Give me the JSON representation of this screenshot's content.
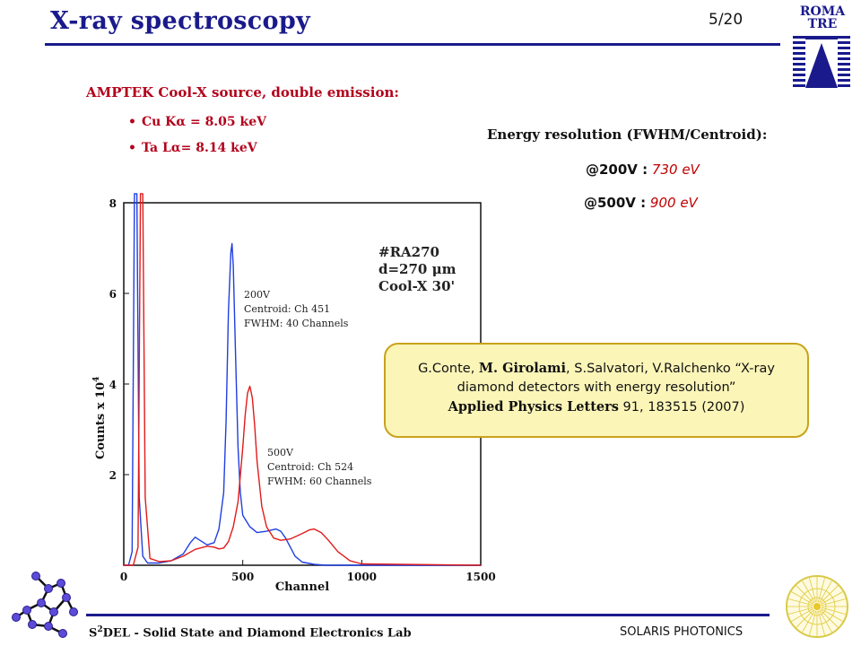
{
  "slide": {
    "title": "X-ray spectroscopy",
    "page": "5/20",
    "logo_line1": "ROMA",
    "logo_line2": "TRE",
    "colors": {
      "title": "#1a1a8c",
      "accent_red": "#b3001b",
      "callout_bg": "#fbf5b8",
      "callout_border": "#c9a21b"
    }
  },
  "source": {
    "title": "AMPTEK Cool-X source, double emission:",
    "bullets": [
      "Cu Kα = 8.05 keV",
      "Ta Lα= 8.14 keV"
    ]
  },
  "resolution": {
    "title": "Energy resolution (FWHM/Centroid):",
    "rows": [
      {
        "label": "@200V :",
        "value": "730 eV"
      },
      {
        "label": "@500V :",
        "value": "900 eV"
      }
    ]
  },
  "chart_data": {
    "type": "line",
    "xlabel": "Channel",
    "ylabel": "Counts x 10",
    "ylabel_exp": "4",
    "xlim": [
      0,
      1500
    ],
    "ylim": [
      0,
      8
    ],
    "xticks": [
      0,
      500,
      1000,
      1500
    ],
    "yticks": [
      2,
      4,
      6,
      8
    ],
    "xtick_labels": [
      "0",
      "500",
      "1000",
      "1500"
    ],
    "ytick_labels": [
      "2",
      "4",
      "6",
      "8"
    ],
    "grid": false,
    "annotations": {
      "sample": [
        "#RA270",
        "d=270 μm",
        "Cool-X 30'"
      ],
      "s200": [
        "200V",
        "Centroid: Ch 451",
        "FWHM: 40 Channels"
      ],
      "s500": [
        "500V",
        "Centroid: Ch 524",
        "FWHM: 60 Channels"
      ]
    },
    "series": [
      {
        "color": "#1f3fe0",
        "x": [
          0,
          20,
          35,
          45,
          55,
          65,
          80,
          100,
          150,
          200,
          250,
          280,
          300,
          320,
          350,
          380,
          400,
          420,
          430,
          440,
          450,
          455,
          460,
          470,
          480,
          490,
          500,
          530,
          560,
          600,
          640,
          660,
          680,
          700,
          720,
          750,
          800,
          850,
          900,
          950,
          1000,
          1500
        ],
        "y": [
          0,
          0,
          0.3,
          8.2,
          8.2,
          1.5,
          0.2,
          0.05,
          0.05,
          0.1,
          0.25,
          0.5,
          0.62,
          0.55,
          0.45,
          0.5,
          0.8,
          1.6,
          3.2,
          5.6,
          6.9,
          7.1,
          6.6,
          4.6,
          2.6,
          1.6,
          1.1,
          0.85,
          0.72,
          0.75,
          0.8,
          0.75,
          0.6,
          0.4,
          0.2,
          0.07,
          0.02,
          0,
          0,
          0,
          0,
          0
        ]
      },
      {
        "color": "#e01b1b",
        "x": [
          0,
          40,
          60,
          70,
          80,
          90,
          110,
          150,
          200,
          250,
          300,
          350,
          380,
          400,
          420,
          440,
          460,
          480,
          500,
          510,
          520,
          530,
          540,
          550,
          560,
          580,
          600,
          630,
          660,
          700,
          750,
          780,
          800,
          830,
          860,
          900,
          950,
          1000,
          1500
        ],
        "y": [
          0,
          0,
          0.4,
          8.2,
          8.2,
          1.5,
          0.15,
          0.08,
          0.1,
          0.2,
          0.35,
          0.42,
          0.4,
          0.36,
          0.38,
          0.52,
          0.85,
          1.4,
          2.6,
          3.3,
          3.8,
          3.95,
          3.7,
          3.1,
          2.3,
          1.3,
          0.85,
          0.6,
          0.55,
          0.58,
          0.7,
          0.78,
          0.8,
          0.72,
          0.55,
          0.3,
          0.1,
          0.03,
          0
        ]
      }
    ]
  },
  "citation": {
    "authors_pre": "G.Conte, ",
    "authors_bold": "M. Girolami",
    "authors_post": ", S.Salvatori, V.Ralchenko “X-ray diamond detectors with energy resolution”",
    "journal": "Applied Physics Letters",
    "ref": " 91, 183515 (2007)"
  },
  "footer": {
    "left_prefix": "S",
    "left_sup": "2",
    "left_rest": "DEL - Solid State and Diamond Electronics Lab",
    "right": "SOLARIS PHOTONICS"
  }
}
